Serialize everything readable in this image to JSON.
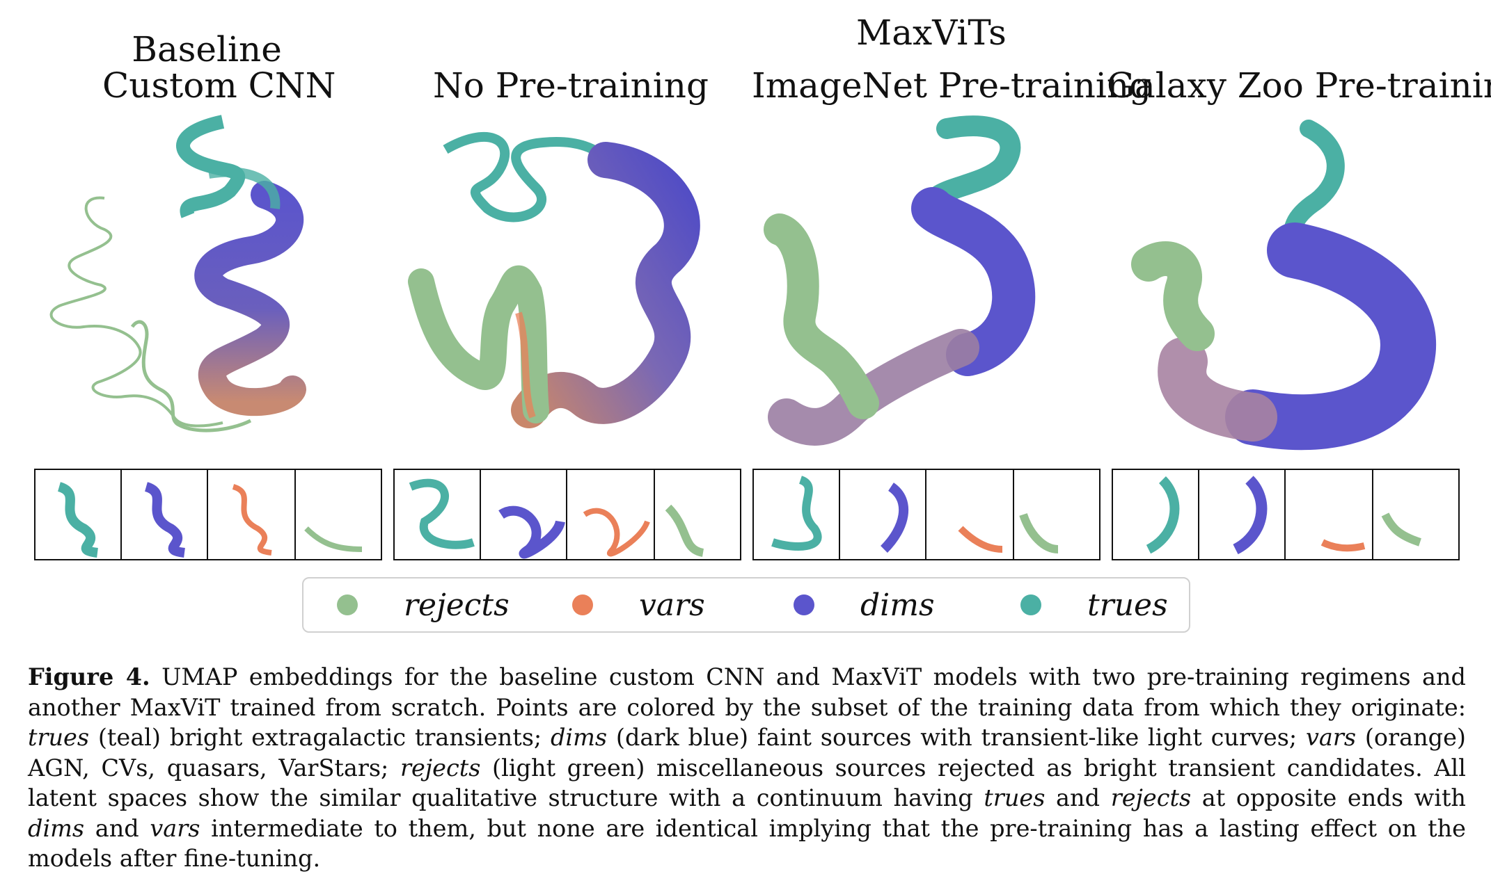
{
  "figure": {
    "titles": {
      "group": "MaxViTs",
      "baseline_line1": "Baseline",
      "baseline_line2": "Custom CNN",
      "no_pretraining": "No Pre-training",
      "imagenet": "ImageNet Pre-training",
      "galaxyzoo": "Galaxy Zoo Pre-training"
    },
    "colors": {
      "rejects": "#94c08f",
      "vars": "#ea8059",
      "dims": "#5b55cc",
      "trues": "#4bb0a4",
      "faded": "#cfcfcf"
    },
    "legend": [
      {
        "label": "rejects",
        "color": "#94c08f"
      },
      {
        "label": "vars",
        "color": "#ea8059"
      },
      {
        "label": "dims",
        "color": "#5b55cc"
      },
      {
        "label": "trues",
        "color": "#4bb0a4"
      }
    ]
  },
  "caption": {
    "label": "Figure 4.",
    "t1": " UMAP embeddings for the baseline custom CNN and MaxViT models with two pre-training regimens and another MaxViT trained from scratch.  Points are colored by the subset of the training data from which they originate: ",
    "trues": "trues",
    "t2": " (teal) bright extragalactic transients; ",
    "dims": "dims",
    "t3": " (dark blue) faint sources with transient-like light curves; ",
    "vars": "vars",
    "t4": " (orange) AGN, CVs, quasars, VarStars; ",
    "rejects": "rejects",
    "t5": " (light green) miscellaneous sources rejected as bright transient candidates.  All latent spaces show the similar qualitative structure with a continuum having ",
    "trues2": "trues",
    "t6": " and ",
    "rejects2": "rejects",
    "t7": " at opposite ends with ",
    "dims2": "dims",
    "t8": " and ",
    "vars2": "vars",
    "t9": " intermediate to them, but none are identical implying that the pre-training has a lasting effect on the models after fine-tuning."
  }
}
